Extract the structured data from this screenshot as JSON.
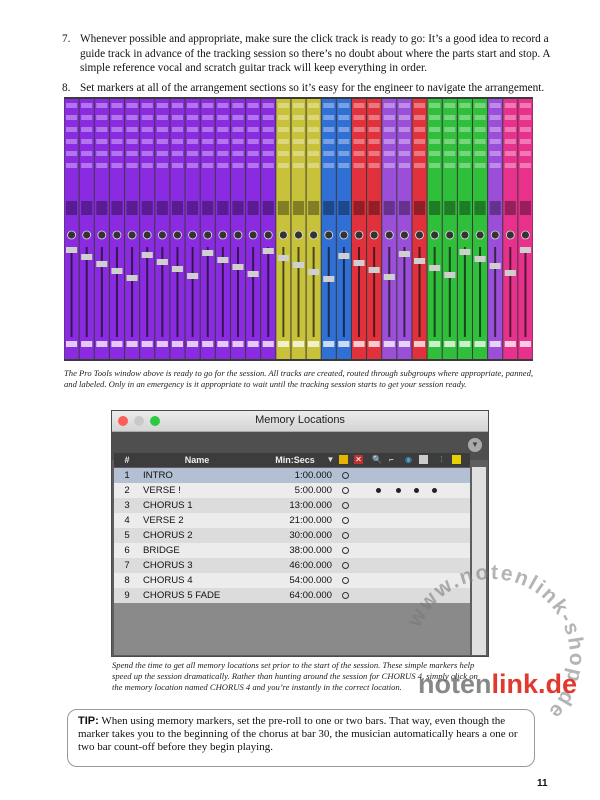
{
  "list": [
    {
      "number": "7.",
      "text": "Whenever possible and appropriate, make sure the click track is ready to go: It’s a good idea to record a guide track in advance of the tracking session so there’s no doubt about where the parts start and stop. A simple reference vocal and scratch guitar track will keep everything in order."
    },
    {
      "number": "8.",
      "text": "Set markers at all of the arrangement sections so it’s easy for the engineer to navigate the arrangement."
    }
  ],
  "mixer": {
    "track_colors": [
      "#8a2be2",
      "#8a2be2",
      "#8a2be2",
      "#8a2be2",
      "#8a2be2",
      "#8a2be2",
      "#8a2be2",
      "#8a2be2",
      "#8a2be2",
      "#8a2be2",
      "#8a2be2",
      "#8a2be2",
      "#8a2be2",
      "#8a2be2",
      "#c8c23a",
      "#c8c23a",
      "#c8c23a",
      "#2f6fd6",
      "#2f6fd6",
      "#e0313c",
      "#e0313c",
      "#9b4fd9",
      "#9b4fd9",
      "#e0313c",
      "#2fbf3a",
      "#2fbf3a",
      "#2fbf3a",
      "#2fbf3a",
      "#9b4fd9",
      "#e8318c",
      "#e8318c"
    ]
  },
  "captions": {
    "mixer": "The Pro Tools window above is ready to go for the session. All tracks are created, routed through subgroups where appropriate, panned, and labeled. Only in an emergency is it appropriate to wait until the tracking session starts to get your session ready.",
    "memory": "Spend the time to get all memory locations set prior to the start of the session. These simple markers help speed up the session dramatically. Rather than hunting around the session for CHORUS 4, simply click on the memory location named CHORUS 4 and you’re instantly in the correct location."
  },
  "memory_window": {
    "title": "Memory Locations",
    "headers": {
      "number": "#",
      "name": "Name",
      "time": "Min:Secs"
    },
    "rows": [
      {
        "number": "1",
        "name": "INTRO",
        "time": "1:00.000",
        "dots": []
      },
      {
        "number": "2",
        "name": "VERSE !",
        "time": "5:00.000",
        "dots": [
          0,
          1,
          2,
          3
        ]
      },
      {
        "number": "3",
        "name": "CHORUS 1",
        "time": "13:00.000",
        "dots": []
      },
      {
        "number": "4",
        "name": "VERSE 2",
        "time": "21:00.000",
        "dots": []
      },
      {
        "number": "5",
        "name": "CHORUS 2",
        "time": "30:00.000",
        "dots": []
      },
      {
        "number": "6",
        "name": "BRIDGE",
        "time": "38:00.000",
        "dots": []
      },
      {
        "number": "7",
        "name": "CHORUS 3",
        "time": "46:00.000",
        "dots": []
      },
      {
        "number": "8",
        "name": "CHORUS 4",
        "time": "54:00.000",
        "dots": []
      },
      {
        "number": "9",
        "name": "CHORUS 5 FADE",
        "time": "64:00.000",
        "dots": []
      }
    ]
  },
  "tip": {
    "label": "TIP:",
    "text": "When using memory markers, set the pre-roll to one or two bars. That way, even though the marker takes you to the beginning of the chorus at bar 30, the musician automatically hears a one or two bar count-off before they begin playing."
  },
  "page_number": "11",
  "watermark": {
    "text": "www.notenlink-shop.de",
    "brand_dark": "noten",
    "brand_red": "link.de"
  }
}
